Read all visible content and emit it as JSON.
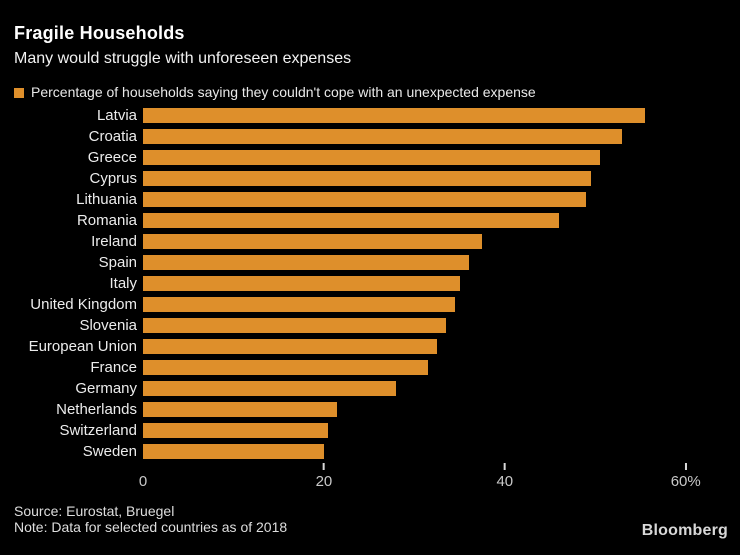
{
  "header": {
    "title": "Fragile Households",
    "subtitle": "Many would struggle with unforeseen expenses"
  },
  "legend": {
    "label": "Percentage of households saying they couldn't cope with an unexpected expense"
  },
  "colors": {
    "background": "#000000",
    "bar_orange": "#DE8F2B",
    "title_text": "#FFFFFF",
    "axis_text": "#C9C9C9"
  },
  "chart_data": {
    "type": "bar",
    "orientation": "horizontal",
    "title": "Fragile Households",
    "subtitle": "Many would struggle with unforeseen expenses",
    "series_label": "Percentage of households saying they couldn't cope with an unexpected expense",
    "categories": [
      "Latvia",
      "Croatia",
      "Greece",
      "Cyprus",
      "Lithuania",
      "Romania",
      "Ireland",
      "Spain",
      "Italy",
      "United Kingdom",
      "Slovenia",
      "European Union",
      "France",
      "Germany",
      "Netherlands",
      "Switzerland",
      "Sweden"
    ],
    "values": [
      55.5,
      53,
      50.5,
      49.5,
      49,
      46,
      37.5,
      36,
      35,
      34.5,
      33.5,
      32.5,
      31.5,
      28,
      21.5,
      20.5,
      20
    ],
    "xlabel": "",
    "ylabel": "",
    "xlim": [
      0,
      66
    ],
    "grid": false,
    "legend_position": "top-left",
    "bar_color": "#DE8F2B",
    "x_ticks": [
      {
        "value": 0,
        "label": "0",
        "tick_mark": false
      },
      {
        "value": 20,
        "label": "20",
        "tick_mark": true
      },
      {
        "value": 40,
        "label": "40",
        "tick_mark": true
      },
      {
        "value": 60,
        "label": "60%",
        "tick_mark": true
      }
    ]
  },
  "footer": {
    "source": "Source: Eurostat, Bruegel",
    "note": "Note: Data for selected countries as of 2018",
    "brand": "Bloomberg"
  }
}
